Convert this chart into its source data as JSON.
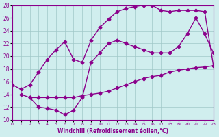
{
  "line1_x": [
    0,
    1,
    2,
    3,
    4,
    5,
    6,
    7,
    8,
    9,
    10,
    11,
    12,
    13,
    14,
    15,
    16,
    17,
    18,
    19,
    20,
    21,
    22,
    23
  ],
  "line1_y": [
    15.5,
    14.8,
    15.5,
    17.5,
    19.5,
    21.0,
    22.3,
    19.5,
    19.0,
    22.5,
    24.5,
    25.8,
    27.0,
    27.5,
    27.8,
    28.0,
    28.0,
    27.2,
    27.0,
    27.2,
    27.2,
    27.2,
    27.0,
    18.5
  ],
  "line2_x": [
    1,
    2,
    3,
    4,
    5,
    6,
    7,
    8,
    9,
    10,
    11,
    12,
    13,
    14,
    15,
    16,
    17,
    18,
    19,
    20,
    21,
    22,
    23
  ],
  "line2_y": [
    14.0,
    13.5,
    12.0,
    11.8,
    11.5,
    10.8,
    11.5,
    13.5,
    19.0,
    20.5,
    22.0,
    22.5,
    22.0,
    21.5,
    21.0,
    20.5,
    20.5,
    20.5,
    21.5,
    23.5,
    26.0,
    23.5,
    20.5
  ],
  "line3_x": [
    2,
    3,
    4,
    5,
    6,
    7,
    8,
    9,
    10,
    11,
    12,
    13,
    14,
    15,
    16,
    17,
    18,
    19,
    20,
    21,
    22,
    23
  ],
  "line3_y": [
    13.5,
    13.5,
    13.5,
    13.5,
    13.5,
    13.5,
    13.8,
    14.0,
    14.2,
    14.5,
    15.0,
    15.5,
    16.0,
    16.5,
    16.8,
    17.0,
    17.5,
    17.8,
    18.0,
    18.2,
    18.3,
    18.5
  ],
  "color": "#8B008B",
  "bg_color": "#d0eeee",
  "grid_color": "#a0c8c8",
  "xlabel": "Windchill (Refroidissement éolien,°C)",
  "xlim": [
    0,
    23
  ],
  "ylim": [
    10,
    28
  ],
  "xticks": [
    0,
    1,
    2,
    3,
    4,
    5,
    6,
    7,
    8,
    9,
    10,
    11,
    12,
    13,
    14,
    15,
    16,
    17,
    18,
    19,
    20,
    21,
    22,
    23
  ],
  "yticks": [
    10,
    12,
    14,
    16,
    18,
    20,
    22,
    24,
    26,
    28
  ]
}
